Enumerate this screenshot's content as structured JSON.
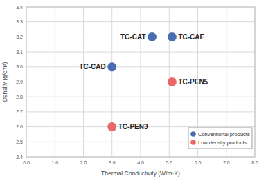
{
  "chart_data": {
    "type": "scatter",
    "x_label": "Thermal Conductivity (W/m·K)",
    "y_label": "Density (g/cm³)",
    "xlim": [
      0,
      8
    ],
    "ylim": [
      2.4,
      3.4
    ],
    "xticks": [
      {
        "value": 0,
        "label": "0.0"
      },
      {
        "value": 1,
        "label": "1.0"
      },
      {
        "value": 2,
        "label": "2.0"
      },
      {
        "value": 3,
        "label": "3.0"
      },
      {
        "value": 4,
        "label": "4.0"
      },
      {
        "value": 5,
        "label": "5.0"
      },
      {
        "value": 6,
        "label": "6.0"
      },
      {
        "value": 7,
        "label": "7.0"
      },
      {
        "value": 8,
        "label": "8.0"
      }
    ],
    "yticks": [
      2.4,
      2.5,
      2.6,
      2.7,
      2.8,
      2.9,
      {
        "value": 3,
        "label": "3.0"
      },
      3.1,
      3.2,
      3.3,
      3.4
    ],
    "grid": true,
    "legend": "lower right",
    "marker": "circle",
    "series": [
      {
        "name": "Conventional products",
        "color": "#4a6cb3",
        "labels": [
          "TC-CAT",
          "TC-CAF",
          "TC-CAD"
        ],
        "x": [
          4.4,
          5.1,
          3.0
        ],
        "values": [
          3.2,
          3.2,
          3.0
        ]
      },
      {
        "name": "Low density products",
        "color": "#e8686a",
        "labels": [
          "TC-PEN5",
          "TC-PEN3"
        ],
        "x": [
          5.1,
          3.0
        ],
        "values": [
          2.9,
          2.6
        ]
      }
    ]
  }
}
